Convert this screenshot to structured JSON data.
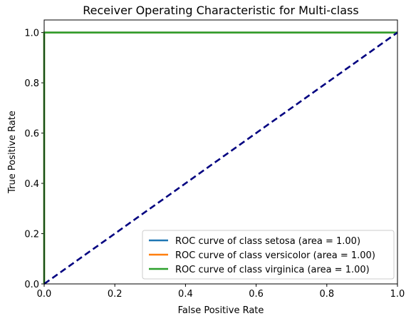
{
  "chart_data": {
    "type": "line",
    "title": "Receiver Operating Characteristic for Multi-class",
    "xlabel": "False Positive Rate",
    "ylabel": "True Positive Rate",
    "xlim": [
      0.0,
      1.0
    ],
    "ylim": [
      0.0,
      1.05
    ],
    "xticks": [
      0.0,
      0.2,
      0.4,
      0.6,
      0.8,
      1.0
    ],
    "yticks": [
      0.0,
      0.2,
      0.4,
      0.6,
      0.8,
      1.0
    ],
    "xtick_labels": [
      "0.0",
      "0.2",
      "0.4",
      "0.6",
      "0.8",
      "1.0"
    ],
    "ytick_labels": [
      "0.0",
      "0.2",
      "0.4",
      "0.6",
      "0.8",
      "1.0"
    ],
    "grid": false,
    "legend_position": "lower-right",
    "series": [
      {
        "name": "ROC curve of class setosa (area = 1.00)",
        "color": "#1f77b4",
        "x": [
          0.0,
          0.0,
          1.0
        ],
        "y": [
          0.0,
          1.0,
          1.0
        ]
      },
      {
        "name": "ROC curve of class versicolor (area = 1.00)",
        "color": "#ff7f0e",
        "x": [
          0.0,
          0.0,
          1.0
        ],
        "y": [
          0.0,
          1.0,
          1.0
        ]
      },
      {
        "name": "ROC curve of class virginica (area = 1.00)",
        "color": "#2ca02c",
        "x": [
          0.0,
          0.0,
          1.0
        ],
        "y": [
          0.0,
          1.0,
          1.0
        ]
      }
    ],
    "reference_line": {
      "color": "#000080",
      "style": "dashed",
      "x": [
        0.0,
        1.0
      ],
      "y": [
        0.0,
        1.0
      ]
    }
  }
}
